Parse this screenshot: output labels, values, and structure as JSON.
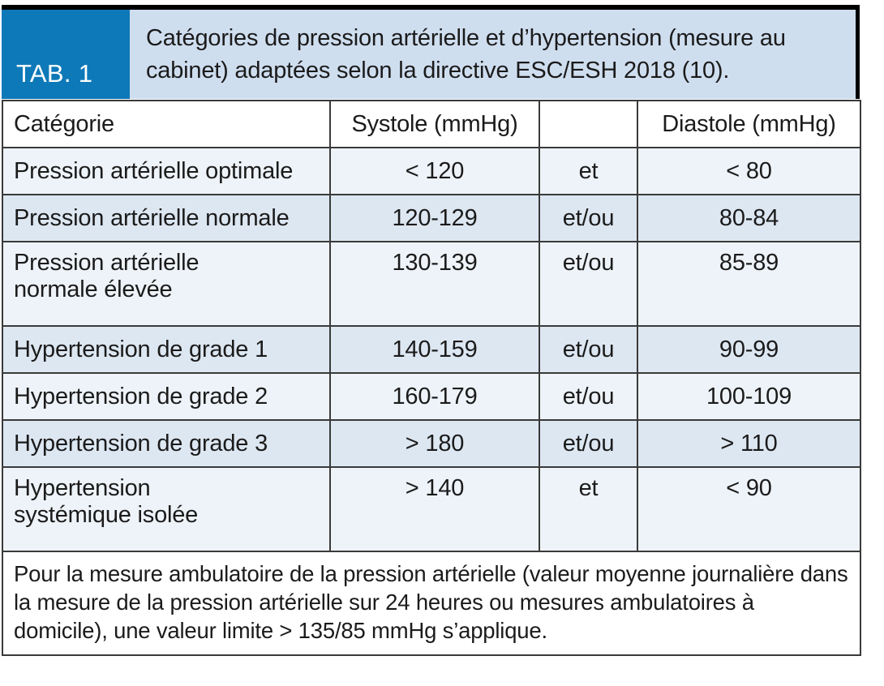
{
  "header": {
    "tab_label": "TAB. 1",
    "title": "Catégories de pression artérielle et d’hypertension (mesure au cabinet) adaptées selon la directive ESC/ESH 2018 (10)."
  },
  "table": {
    "headers": [
      "Catégorie",
      "Systole (mmHg)",
      "",
      "Diastole (mmHg)"
    ],
    "rows": [
      {
        "category": "Pression artérielle optimale",
        "systole": "< 120",
        "connector": "et",
        "diastole": "< 80"
      },
      {
        "category": "Pression artérielle normale",
        "systole": "120-129",
        "connector": "et/ou",
        "diastole": "80-84"
      },
      {
        "category": "Pression artérielle\nnormale élevée",
        "systole": "130-139",
        "connector": "et/ou",
        "diastole": "85-89"
      },
      {
        "category": "Hypertension de grade 1",
        "systole": "140-159",
        "connector": "et/ou",
        "diastole": "90-99"
      },
      {
        "category": "Hypertension de grade 2",
        "systole": "160-179",
        "connector": "et/ou",
        "diastole": "100-109"
      },
      {
        "category": "Hypertension de grade 3",
        "systole": "> 180",
        "connector": "et/ou",
        "diastole": "> 110"
      },
      {
        "category": "Hypertension\nsystémique isolée",
        "systole": "> 140",
        "connector": "et",
        "diastole": "< 90"
      }
    ],
    "footnote": "Pour la mesure ambulatoire de la pression artérielle (valeur moyenne journalière dans la mesure de la pression artérielle sur 24 heures ou mesures ambulatoires à domicile), une valeur limite > 135/85 mmHg s’applique."
  },
  "colors": {
    "accent_blue": "#0e79b8",
    "title_bg": "#cfdeef",
    "row_shaded": "#dde7f2",
    "row_light": "#eef3f9",
    "grid": "#3a3a3a",
    "top_rule": "#000000"
  },
  "chart_data": {
    "type": "table",
    "title": "Catégories de pression artérielle et d’hypertension (mesure au cabinet) adaptées selon la directive ESC/ESH 2018 (10).",
    "columns": [
      "Catégorie",
      "Systole (mmHg)",
      "",
      "Diastole (mmHg)"
    ],
    "rows": [
      [
        "Pression artérielle optimale",
        "< 120",
        "et",
        "< 80"
      ],
      [
        "Pression artérielle normale",
        "120-129",
        "et/ou",
        "80-84"
      ],
      [
        "Pression artérielle normale élevée",
        "130-139",
        "et/ou",
        "85-89"
      ],
      [
        "Hypertension de grade 1",
        "140-159",
        "et/ou",
        "90-99"
      ],
      [
        "Hypertension de grade 2",
        "160-179",
        "et/ou",
        "100-109"
      ],
      [
        "Hypertension de grade 3",
        "> 180",
        "et/ou",
        "> 110"
      ],
      [
        "Hypertension systémique isolée",
        "> 140",
        "et",
        "< 90"
      ]
    ],
    "footnote": "Pour la mesure ambulatoire de la pression artérielle (valeur moyenne journalière dans la mesure de la pression artérielle sur 24 heures ou mesures ambulatoires à domicile), une valeur limite > 135/85 mmHg s’applique."
  }
}
